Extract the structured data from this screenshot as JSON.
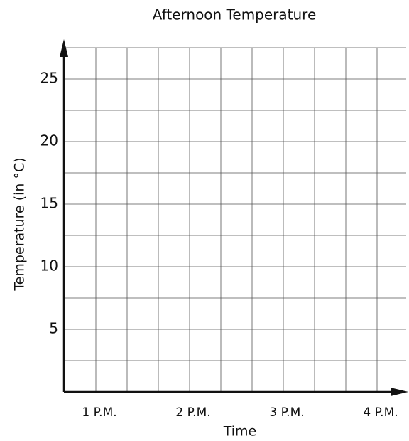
{
  "chart_data": {
    "type": "line",
    "title": "Afternoon Temperature",
    "xlabel": "Time",
    "ylabel": "Temperature (in °C)",
    "categories": [
      "1 P.M.",
      "2 P.M.",
      "3 P.M.",
      "4 P.M."
    ],
    "series": [],
    "ylim": [
      0,
      27.5
    ],
    "yticks": [
      5,
      10,
      15,
      20,
      25
    ],
    "minor_yticks": [
      2.5,
      7.5,
      12.5,
      17.5,
      22.5,
      27.5
    ],
    "grid": true
  }
}
